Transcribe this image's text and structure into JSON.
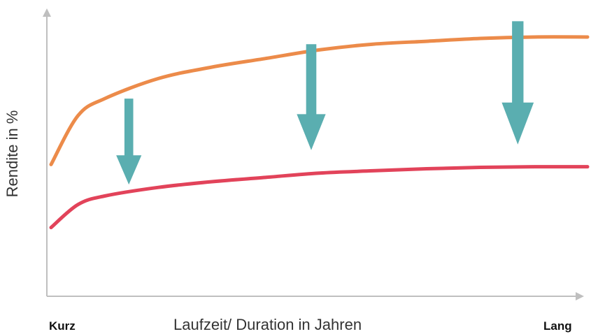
{
  "chart_data": {
    "type": "line",
    "title": "",
    "xlabel": "Laufzeit/ Duration in Jahren",
    "ylabel": "Rendite in %",
    "x_tick_labels": {
      "min": "Kurz",
      "max": "Lang"
    },
    "grid": false,
    "legend": "none",
    "xlim": [
      0,
      10
    ],
    "ylim": [
      0,
      10
    ],
    "series": [
      {
        "color": "#ec8b4a",
        "x": [
          0,
          0.5,
          1,
          2,
          3,
          4,
          5,
          6,
          7,
          8,
          9,
          10
        ],
        "y": [
          4.6,
          6.3,
          6.9,
          7.6,
          8.0,
          8.3,
          8.6,
          8.8,
          8.9,
          9.0,
          9.05,
          9.05
        ]
      },
      {
        "color": "#e2435a",
        "x": [
          0,
          0.5,
          1,
          2,
          3,
          4,
          5,
          6,
          7,
          8,
          9,
          10
        ],
        "y": [
          2.4,
          3.2,
          3.5,
          3.8,
          4.0,
          4.15,
          4.3,
          4.38,
          4.45,
          4.5,
          4.52,
          4.52
        ]
      }
    ],
    "annotations": [
      {
        "type": "down-arrow",
        "x": 1.45,
        "y_from": 6.9,
        "y_to": 3.9,
        "color": "#5aaeb0"
      },
      {
        "type": "down-arrow",
        "x": 4.85,
        "y_from": 8.8,
        "y_to": 5.1,
        "color": "#5aaeb0"
      },
      {
        "type": "down-arrow",
        "x": 8.7,
        "y_from": 9.6,
        "y_to": 5.3,
        "color": "#5aaeb0"
      }
    ],
    "axis_color": "#bfbfbf"
  }
}
